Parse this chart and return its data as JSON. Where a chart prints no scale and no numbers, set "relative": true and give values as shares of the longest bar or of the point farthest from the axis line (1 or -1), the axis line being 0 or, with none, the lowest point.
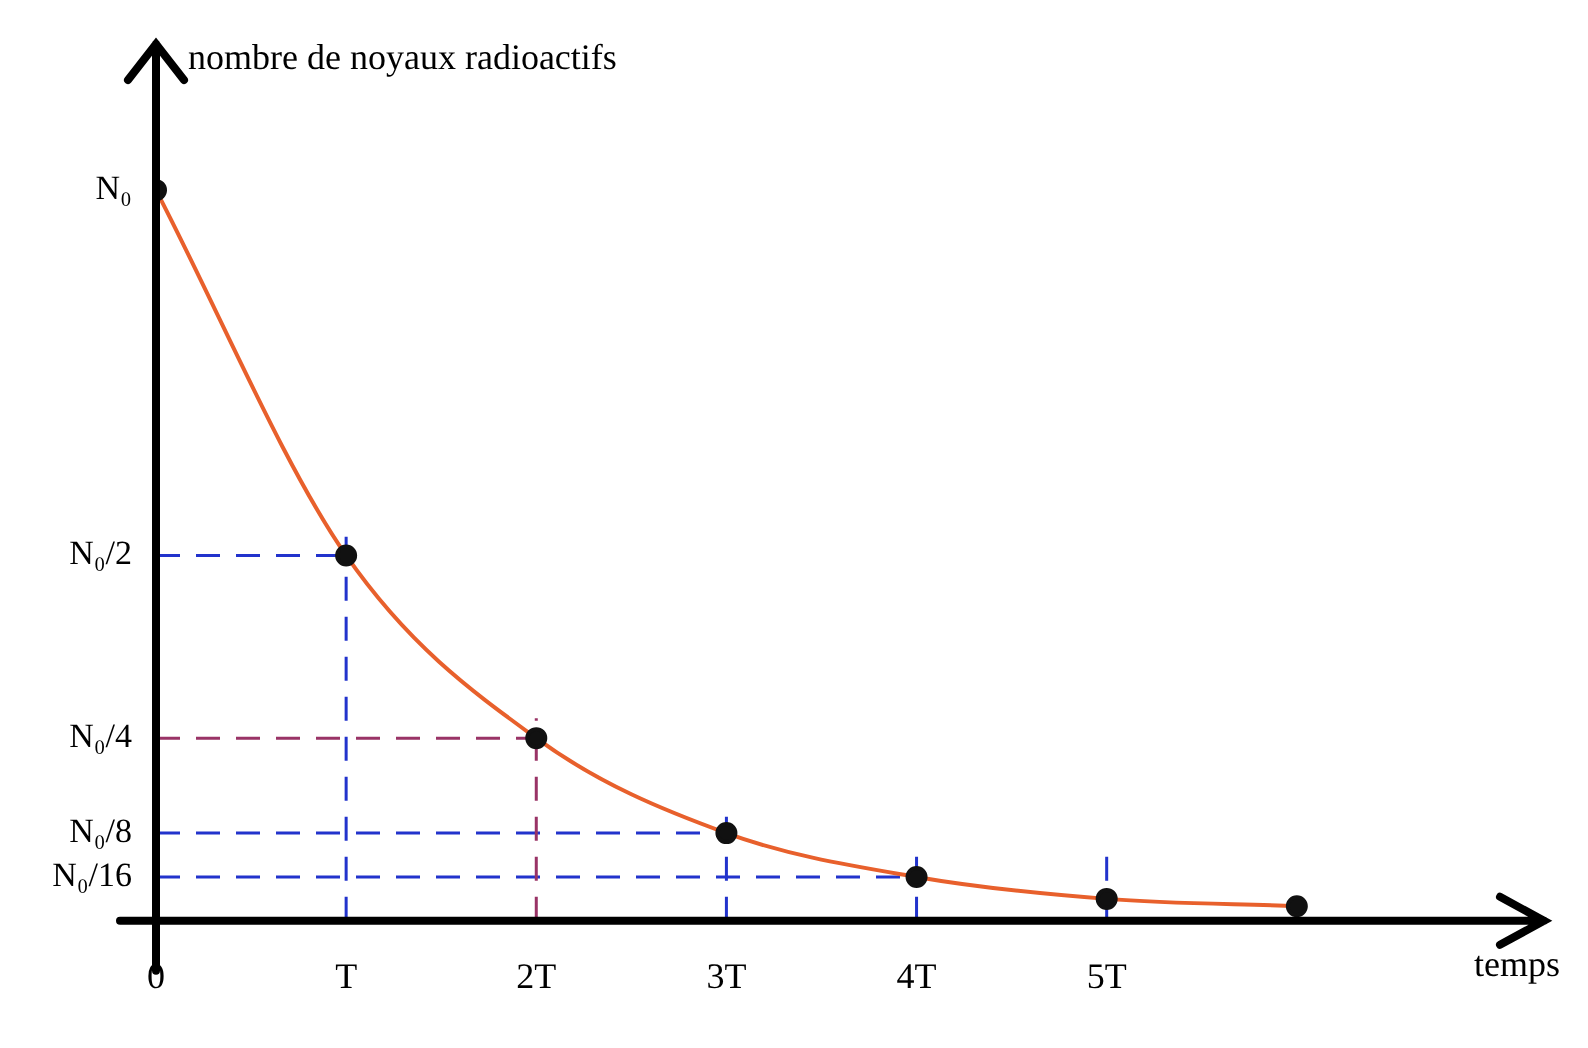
{
  "chart_data": {
    "type": "line",
    "xlabel": "temps",
    "ylabel": "nombre de noyaux radioactifs",
    "relative": true,
    "x": [
      0,
      1,
      2,
      3,
      4,
      5,
      6
    ],
    "series": [
      {
        "color": "#e8602c",
        "values": [
          1,
          0.5,
          0.25,
          0.12,
          0.06,
          0.03,
          0.02
        ]
      }
    ],
    "xlim": [
      0,
      7.3
    ],
    "xticks": [
      0,
      {
        "value": 1,
        "label": "T"
      },
      {
        "value": 2,
        "label": "2T"
      },
      {
        "value": 3,
        "label": "3T"
      },
      {
        "value": 4,
        "label": "4T"
      },
      {
        "value": 5,
        "label": "5T"
      }
    ],
    "annotations": [
      "N₀"
    ],
    "ref_lines": [
      {
        "axis": "y",
        "value": 0.5,
        "label": "N₀/2",
        "color": "#2233cc",
        "line_style": "dashed"
      },
      {
        "axis": "y",
        "value": 0.25,
        "label": "N₀/4",
        "color": "#993366",
        "line_style": "dashed"
      },
      {
        "axis": "y",
        "value": 0.12,
        "label": "N₀/8",
        "color": "#2233cc",
        "line_style": "dashed"
      },
      {
        "axis": "y",
        "value": 0.06,
        "label": "N₀/16",
        "color": "#2233cc",
        "line_style": "dashed"
      },
      {
        "axis": "x",
        "value": 1,
        "color": "#2233cc",
        "line_style": "dashed"
      },
      {
        "axis": "x",
        "value": 2,
        "color": "#993366",
        "line_style": "dashed"
      },
      {
        "axis": "x",
        "value": 3,
        "color": "#2233cc",
        "line_style": "dashed"
      },
      {
        "axis": "x",
        "value": 4,
        "color": "#2233cc",
        "line_style": "dashed"
      },
      {
        "axis": "x",
        "value": 5,
        "color": "#2233cc",
        "line_style": "dashed"
      }
    ],
    "marker": "circle",
    "line_style": "solid",
    "legend": false,
    "grid": false
  }
}
